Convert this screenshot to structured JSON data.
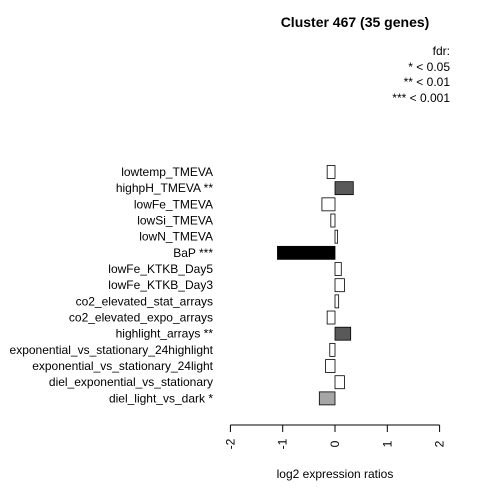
{
  "chart_data": {
    "type": "bar",
    "orientation": "horizontal",
    "title": "Cluster 467 (35 genes)",
    "xlabel": "log2 expression ratios",
    "xlim": [
      -2,
      2
    ],
    "xticks": [
      "-2",
      "-1",
      "0",
      "1",
      "2"
    ],
    "legend": {
      "title": "fdr:",
      "entries": [
        "* < 0.05",
        "** < 0.01",
        "*** < 0.001"
      ],
      "placement": "top-right"
    },
    "categories": [
      "lowtemp_TMEVA",
      "highpH_TMEVA **",
      "lowFe_TMEVA",
      "lowSi_TMEVA",
      "lowN_TMEVA",
      "BaP ***",
      "lowFe_KTKB_Day5",
      "lowFe_KTKB_Day3",
      "co2_elevated_stat_arrays",
      "co2_elevated_expo_arrays",
      "highlight_arrays **",
      "exponential_vs_stationary_24highlight",
      "exponential_vs_stationary_24light",
      "diel_exponential_vs_stationary",
      "diel_light_vs_dark *"
    ],
    "values": [
      -0.15,
      0.35,
      -0.25,
      -0.08,
      0.05,
      -1.1,
      0.12,
      0.18,
      0.07,
      -0.15,
      0.3,
      -0.1,
      -0.18,
      0.18,
      -0.3
    ],
    "colors": [
      "#ffffff",
      "#595959",
      "#ffffff",
      "#ffffff",
      "#ffffff",
      "#000000",
      "#ffffff",
      "#ffffff",
      "#ffffff",
      "#ffffff",
      "#595959",
      "#ffffff",
      "#ffffff",
      "#ffffff",
      "#a6a6a6"
    ]
  }
}
